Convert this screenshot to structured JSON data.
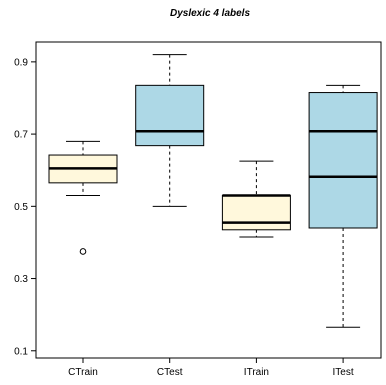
{
  "chart_data": {
    "type": "boxplot",
    "title": "Dyslexic 4 labels",
    "xlabel": "",
    "ylabel": "",
    "ylim": [
      0.08,
      0.955
    ],
    "yticks": [
      0.1,
      0.3,
      0.5,
      0.7,
      0.9
    ],
    "ytick_labels": [
      "0.1",
      "0.3",
      "0.5",
      "0.7",
      "0.9"
    ],
    "grid": false,
    "colors": {
      "train": "#fff8dc",
      "test": "#add8e6",
      "stroke": "#000000"
    },
    "categories": [
      "CTrain",
      "CTest",
      "ITrain",
      "ITest"
    ],
    "boxes": [
      {
        "category": "CTrain",
        "fill": "#fff8dc",
        "whisker_low": 0.53,
        "q1": 0.565,
        "medians": [
          0.605
        ],
        "q3": 0.642,
        "whisker_high": 0.68,
        "outliers": [
          0.375
        ]
      },
      {
        "category": "CTest",
        "fill": "#add8e6",
        "whisker_low": 0.5,
        "q1": 0.668,
        "medians": [
          0.708
        ],
        "q3": 0.835,
        "whisker_high": 0.92,
        "outliers": []
      },
      {
        "category": "ITrain",
        "fill": "#fff8dc",
        "whisker_low": 0.415,
        "q1": 0.435,
        "medians": [
          0.455,
          0.53
        ],
        "q3": 0.53,
        "whisker_high": 0.625,
        "outliers": []
      },
      {
        "category": "ITest",
        "fill": "#add8e6",
        "whisker_low": 0.165,
        "q1": 0.44,
        "medians": [
          0.582,
          0.708
        ],
        "q3": 0.815,
        "whisker_high": 0.835,
        "outliers": []
      }
    ]
  }
}
